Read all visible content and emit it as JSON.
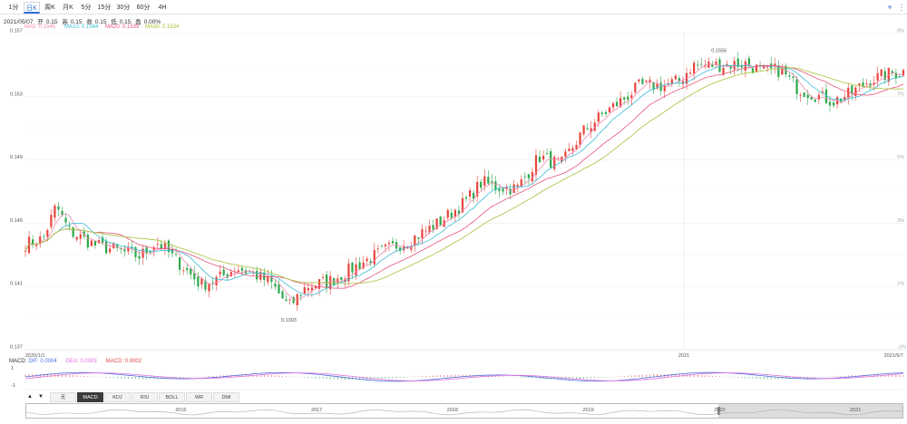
{
  "periods": [
    "1分",
    "日K",
    "周K",
    "月K",
    "5分",
    "15分",
    "30分",
    "60分",
    "4H"
  ],
  "active_period": 1,
  "toolbar": {
    "fullscreen_icon": "crosshair-icon",
    "more_icon": "more-vertical-icon"
  },
  "quote": {
    "date": "2021/05/07",
    "open_label": "开",
    "open": "0.15",
    "high_label": "高",
    "high": "0.15",
    "close_label": "收",
    "close": "0.15",
    "low_label": "低",
    "low": "0.15",
    "change_label": "盈",
    "change": "0.00%"
  },
  "ma_legend": [
    {
      "label": "MA5: 0.1545",
      "color": "#f08ab4"
    },
    {
      "label": "MA10: 0.1544",
      "color": "#3bbcd6"
    },
    {
      "label": "MA20: 0.1539",
      "color": "#e8557a"
    },
    {
      "label": "MA30: 0.1534",
      "color": "#a6c23a"
    }
  ],
  "macd_legend": [
    {
      "label": "MACD:",
      "color": "#333333"
    },
    {
      "label": "DIF: 0.0004",
      "color": "#4a6de0"
    },
    {
      "label": "DEA: 0.0003",
      "color": "#e070e0"
    },
    {
      "label": "MACD: 0.0002",
      "color": "#e04a4a"
    }
  ],
  "indicator_tabs": [
    "无",
    "MACD",
    "KDJ",
    "RSI",
    "BOLL",
    "WR",
    "DMI"
  ],
  "active_indicator": 1,
  "navigator": {
    "years": [
      "2016",
      "2017",
      "2018",
      "2019",
      "2020",
      "2021"
    ],
    "selection": [
      0.79,
      1.0
    ]
  },
  "chart_data": {
    "type": "candlestick",
    "y_ticks": [
      "0.157",
      "0.153",
      "0.149",
      "0.145",
      "0.141",
      "0.137"
    ],
    "pct_ticks": [
      "9%",
      "7%",
      "5%",
      "3%",
      "1%",
      "-1%"
    ],
    "ylim": [
      0.137,
      0.157
    ],
    "x_labels": [
      {
        "label": "2020/1/1",
        "pos": 0
      },
      {
        "label": "2021",
        "pos": 0.75
      },
      {
        "label": "2021/5/7",
        "pos": 1
      }
    ],
    "annotations": [
      {
        "label": "0.1556",
        "value": 0.1556,
        "pos": 0.79
      },
      {
        "label": "0.1393",
        "value": 0.1393,
        "pos": 0.3
      }
    ],
    "close_path": [
      [
        0.0,
        0.1437
      ],
      [
        0.02,
        0.144
      ],
      [
        0.035,
        0.1461
      ],
      [
        0.05,
        0.1445
      ],
      [
        0.08,
        0.1436
      ],
      [
        0.11,
        0.1432
      ],
      [
        0.13,
        0.1429
      ],
      [
        0.15,
        0.1438
      ],
      [
        0.175,
        0.1425
      ],
      [
        0.2,
        0.1411
      ],
      [
        0.22,
        0.1415
      ],
      [
        0.24,
        0.1422
      ],
      [
        0.26,
        0.1418
      ],
      [
        0.28,
        0.1412
      ],
      [
        0.3,
        0.1397
      ],
      [
        0.32,
        0.141
      ],
      [
        0.35,
        0.1414
      ],
      [
        0.38,
        0.1424
      ],
      [
        0.41,
        0.1433
      ],
      [
        0.44,
        0.144
      ],
      [
        0.47,
        0.145
      ],
      [
        0.5,
        0.1463
      ],
      [
        0.52,
        0.1476
      ],
      [
        0.535,
        0.1473
      ],
      [
        0.56,
        0.1472
      ],
      [
        0.585,
        0.1492
      ],
      [
        0.61,
        0.1487
      ],
      [
        0.635,
        0.1508
      ],
      [
        0.66,
        0.152
      ],
      [
        0.68,
        0.1528
      ],
      [
        0.7,
        0.1537
      ],
      [
        0.725,
        0.1537
      ],
      [
        0.745,
        0.154
      ],
      [
        0.76,
        0.155
      ],
      [
        0.79,
        0.155
      ],
      [
        0.82,
        0.1551
      ],
      [
        0.84,
        0.1546
      ],
      [
        0.86,
        0.1547
      ],
      [
        0.88,
        0.1535
      ],
      [
        0.905,
        0.153
      ],
      [
        0.92,
        0.1527
      ],
      [
        0.94,
        0.1532
      ],
      [
        0.96,
        0.154
      ],
      [
        0.98,
        0.1544
      ],
      [
        1.0,
        0.1546
      ]
    ],
    "macd_ylim": [
      -1,
      1
    ],
    "macd_ticks": [
      "1",
      "-1"
    ]
  }
}
